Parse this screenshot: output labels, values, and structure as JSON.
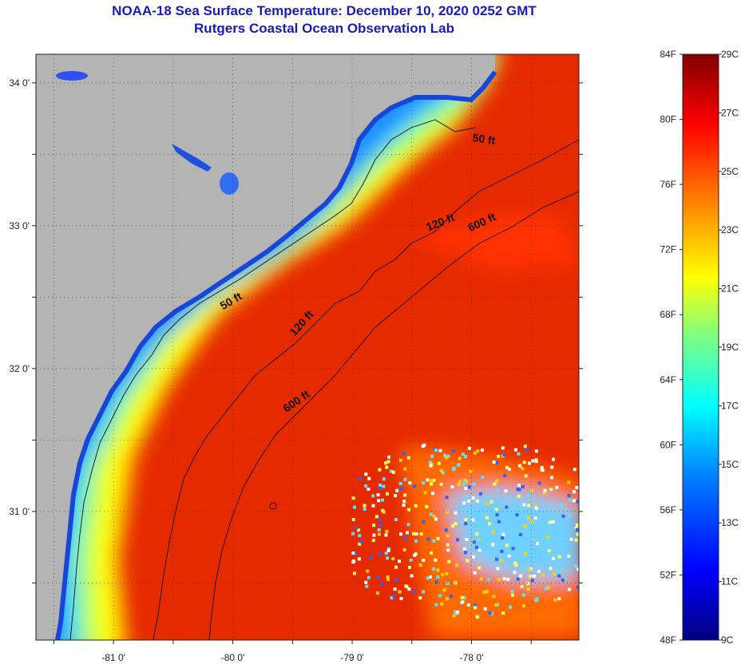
{
  "header": {
    "title": "NOAA-18 Sea Surface Temperature:  December 10, 2020 0252 GMT",
    "subtitle": "Rutgers Coastal Ocean Observation Lab"
  },
  "map": {
    "lat_range": [
      30.1,
      34.2
    ],
    "lon_range": [
      -81.65,
      -77.1
    ],
    "lat_ticks": [
      {
        "lat": 34.0,
        "label": "34 0'"
      },
      {
        "lat": 33.0,
        "label": "33 0'"
      },
      {
        "lat": 32.0,
        "label": "32 0'"
      },
      {
        "lat": 31.0,
        "label": "31 0'"
      }
    ],
    "lon_ticks": [
      {
        "lon": -81.0,
        "label": "-81 0'"
      },
      {
        "lon": -80.0,
        "label": "-80 0'"
      },
      {
        "lon": -79.0,
        "label": "-79 0'"
      },
      {
        "lon": -78.0,
        "label": "-78 0'"
      }
    ],
    "grid": "dotted",
    "contours": [
      {
        "label": "50 ft"
      },
      {
        "label": "120 ft"
      },
      {
        "label": "600 ft"
      }
    ],
    "contour_labels": [
      {
        "text": "50 ft",
        "lon": -77.9,
        "lat": 33.58,
        "angle": 8
      },
      {
        "text": "120 ft",
        "lon": -78.25,
        "lat": 33.0,
        "angle": -22
      },
      {
        "text": "600 ft",
        "lon": -77.9,
        "lat": 33.0,
        "angle": -25
      },
      {
        "text": "50 ft",
        "lon": -80.0,
        "lat": 32.45,
        "angle": -30
      },
      {
        "text": "120 ft",
        "lon": -79.4,
        "lat": 32.3,
        "angle": -48
      },
      {
        "text": "600 ft",
        "lon": -79.45,
        "lat": 31.75,
        "angle": -35
      }
    ],
    "land_color": "#b4b4b4"
  },
  "colorbar": {
    "fahrenheit": [
      "84F",
      "80F",
      "76F",
      "72F",
      "68F",
      "64F",
      "60F",
      "56F",
      "52F",
      "48F"
    ],
    "celsius": [
      "29C",
      "27C",
      "25C",
      "23C",
      "21C",
      "19C",
      "17C",
      "15C",
      "13C",
      "11C",
      "9C"
    ],
    "colors": [
      "#000080",
      "#0000ff",
      "#0080ff",
      "#00ffff",
      "#80ff80",
      "#ffff00",
      "#ff8000",
      "#ff0000",
      "#800000"
    ]
  }
}
